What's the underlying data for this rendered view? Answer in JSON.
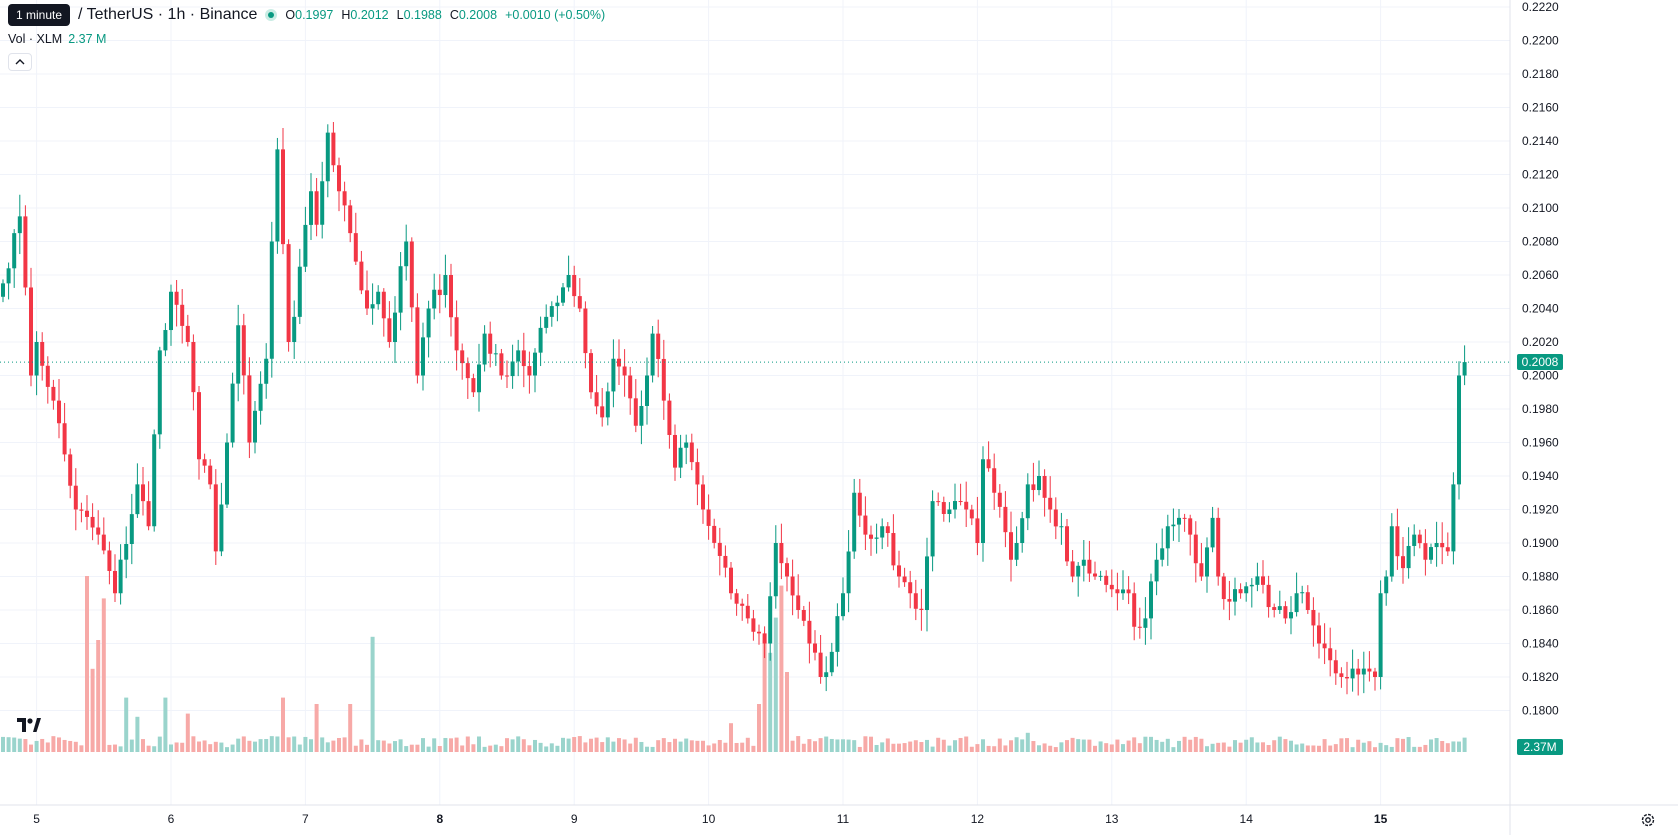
{
  "legend": {
    "tooltip": "1 minute",
    "symbol": "/ TetherUS · 1h · Binance",
    "ohlc": [
      {
        "key": "O",
        "value": "0.1997"
      },
      {
        "key": "H",
        "value": "0.2012"
      },
      {
        "key": "L",
        "value": "0.1988"
      },
      {
        "key": "C",
        "value": "0.2008"
      }
    ],
    "change": "+0.0010 (+0.50%)",
    "volume_label": "Vol · XLM",
    "volume_value": "2.37 M"
  },
  "last_price_label": "0.2008",
  "last_volume_label": "2.37M",
  "icons": {
    "collapse": "chevron-up-icon",
    "logo": "tradingview-logo-icon",
    "settings": "gear-icon"
  },
  "colors": {
    "up": "#089981",
    "down": "#f23645",
    "up_volume": "#9ad4cc",
    "down_volume": "#f7a9a7",
    "grid": "#f0f3fa",
    "axis_text": "#131722"
  },
  "chart_data": {
    "type": "candlestick",
    "interval": "1h",
    "y_ticks": [
      0.222,
      0.22,
      0.218,
      0.216,
      0.214,
      0.212,
      0.21,
      0.208,
      0.206,
      0.204,
      0.202,
      0.2,
      0.198,
      0.196,
      0.194,
      0.192,
      0.19,
      0.188,
      0.186,
      0.184,
      0.182,
      0.18
    ],
    "y_tick_labels": [
      "0.2220",
      "0.2200",
      "0.2180",
      "0.2160",
      "0.2140",
      "0.2120",
      "0.2100",
      "0.2080",
      "0.2060",
      "0.2040",
      "0.2020",
      "0.2000",
      "0.1980",
      "0.1960",
      "0.1940",
      "0.1920",
      "0.1900",
      "0.1880",
      "0.1860",
      "0.1840",
      "0.1820",
      "0.1800"
    ],
    "ylim": [
      0.179,
      0.2225
    ],
    "x_ticks": [
      {
        "label": "5",
        "bar": 6,
        "bold": false
      },
      {
        "label": "6",
        "bar": 30,
        "bold": false
      },
      {
        "label": "7",
        "bar": 54,
        "bold": false
      },
      {
        "label": "8",
        "bar": 78,
        "bold": true
      },
      {
        "label": "9",
        "bar": 102,
        "bold": false
      },
      {
        "label": "10",
        "bar": 126,
        "bold": false
      },
      {
        "label": "11",
        "bar": 150,
        "bold": false
      },
      {
        "label": "12",
        "bar": 174,
        "bold": false
      },
      {
        "label": "13",
        "bar": 198,
        "bold": false
      },
      {
        "label": "14",
        "bar": 222,
        "bold": false
      },
      {
        "label": "15",
        "bar": 246,
        "bold": true
      }
    ],
    "anchors": [
      [
        0,
        0.2055
      ],
      [
        2,
        0.2085
      ],
      [
        3,
        0.2095
      ],
      [
        5,
        0.2
      ],
      [
        6,
        0.202
      ],
      [
        9,
        0.1985
      ],
      [
        13,
        0.192
      ],
      [
        17,
        0.1905
      ],
      [
        20,
        0.187
      ],
      [
        24,
        0.1935
      ],
      [
        26,
        0.191
      ],
      [
        28,
        0.2015
      ],
      [
        30,
        0.205
      ],
      [
        33,
        0.202
      ],
      [
        35,
        0.195
      ],
      [
        37,
        0.1935
      ],
      [
        38,
        0.1895
      ],
      [
        40,
        0.196
      ],
      [
        42,
        0.203
      ],
      [
        44,
        0.196
      ],
      [
        47,
        0.201
      ],
      [
        48,
        0.208
      ],
      [
        49,
        0.2135
      ],
      [
        51,
        0.202
      ],
      [
        52,
        0.2035
      ],
      [
        55,
        0.211
      ],
      [
        56,
        0.209
      ],
      [
        58,
        0.2145
      ],
      [
        60,
        0.211
      ],
      [
        62,
        0.2085
      ],
      [
        65,
        0.204
      ],
      [
        67,
        0.205
      ],
      [
        69,
        0.202
      ],
      [
        72,
        0.208
      ],
      [
        74,
        0.2
      ],
      [
        76,
        0.204
      ],
      [
        79,
        0.206
      ],
      [
        81,
        0.2015
      ],
      [
        84,
        0.199
      ],
      [
        86,
        0.2025
      ],
      [
        89,
        0.2
      ],
      [
        92,
        0.2015
      ],
      [
        94,
        0.2
      ],
      [
        97,
        0.2035
      ],
      [
        101,
        0.206
      ],
      [
        103,
        0.204
      ],
      [
        105,
        0.199
      ],
      [
        107,
        0.1975
      ],
      [
        109,
        0.201
      ],
      [
        111,
        0.2
      ],
      [
        113,
        0.197
      ],
      [
        115,
        0.2
      ],
      [
        116,
        0.2025
      ],
      [
        118,
        0.1985
      ],
      [
        120,
        0.1945
      ],
      [
        122,
        0.196
      ],
      [
        125,
        0.192
      ],
      [
        130,
        0.187
      ],
      [
        133,
        0.1855
      ],
      [
        136,
        0.184
      ],
      [
        138,
        0.19
      ],
      [
        140,
        0.188
      ],
      [
        142,
        0.186
      ],
      [
        144,
        0.184
      ],
      [
        146,
        0.182
      ],
      [
        148,
        0.1835
      ],
      [
        150,
        0.187
      ],
      [
        152,
        0.193
      ],
      [
        154,
        0.1905
      ],
      [
        157,
        0.191
      ],
      [
        160,
        0.188
      ],
      [
        162,
        0.187
      ],
      [
        164,
        0.186
      ],
      [
        166,
        0.1925
      ],
      [
        169,
        0.192
      ],
      [
        172,
        0.192
      ],
      [
        174,
        0.19
      ],
      [
        175,
        0.195
      ],
      [
        177,
        0.193
      ],
      [
        180,
        0.189
      ],
      [
        181,
        0.19
      ],
      [
        183,
        0.1935
      ],
      [
        185,
        0.194
      ],
      [
        187,
        0.192
      ],
      [
        189,
        0.191
      ],
      [
        191,
        0.188
      ],
      [
        193,
        0.189
      ],
      [
        195,
        0.188
      ],
      [
        197,
        0.1875
      ],
      [
        199,
        0.187
      ],
      [
        201,
        0.187
      ],
      [
        202,
        0.185
      ],
      [
        204,
        0.1855
      ],
      [
        206,
        0.189
      ],
      [
        208,
        0.191
      ],
      [
        210,
        0.1915
      ],
      [
        212,
        0.1905
      ],
      [
        214,
        0.188
      ],
      [
        216,
        0.1915
      ],
      [
        217,
        0.188
      ],
      [
        219,
        0.1865
      ],
      [
        221,
        0.187
      ],
      [
        223,
        0.1875
      ],
      [
        225,
        0.1875
      ],
      [
        227,
        0.186
      ],
      [
        229,
        0.1855
      ],
      [
        231,
        0.187
      ],
      [
        233,
        0.186
      ],
      [
        235,
        0.184
      ],
      [
        237,
        0.183
      ],
      [
        239,
        0.182
      ],
      [
        241,
        0.1825
      ],
      [
        243,
        0.1825
      ],
      [
        245,
        0.182
      ],
      [
        246,
        0.187
      ],
      [
        247,
        0.188
      ],
      [
        248,
        0.191
      ],
      [
        250,
        0.1885
      ],
      [
        252,
        0.1905
      ],
      [
        254,
        0.189
      ],
      [
        256,
        0.19
      ],
      [
        258,
        0.1895
      ],
      [
        259,
        0.1935
      ],
      [
        260,
        0.2
      ],
      [
        261,
        0.2008
      ]
    ],
    "volume_spikes": [
      [
        15,
        0.55
      ],
      [
        16,
        0.26
      ],
      [
        17,
        0.35
      ],
      [
        18,
        0.48
      ],
      [
        22,
        0.17
      ],
      [
        24,
        0.11
      ],
      [
        29,
        0.17
      ],
      [
        33,
        0.12
      ],
      [
        50,
        0.17
      ],
      [
        56,
        0.15
      ],
      [
        62,
        0.15
      ],
      [
        66,
        0.36
      ],
      [
        130,
        0.09
      ],
      [
        135,
        0.15
      ],
      [
        136,
        0.35
      ],
      [
        137,
        0.31
      ],
      [
        138,
        0.42
      ],
      [
        139,
        0.52
      ],
      [
        140,
        0.25
      ],
      [
        183,
        0.06
      ],
      [
        264,
        0.06
      ]
    ],
    "last_price": 0.2008,
    "last_volume": "2.37M"
  }
}
